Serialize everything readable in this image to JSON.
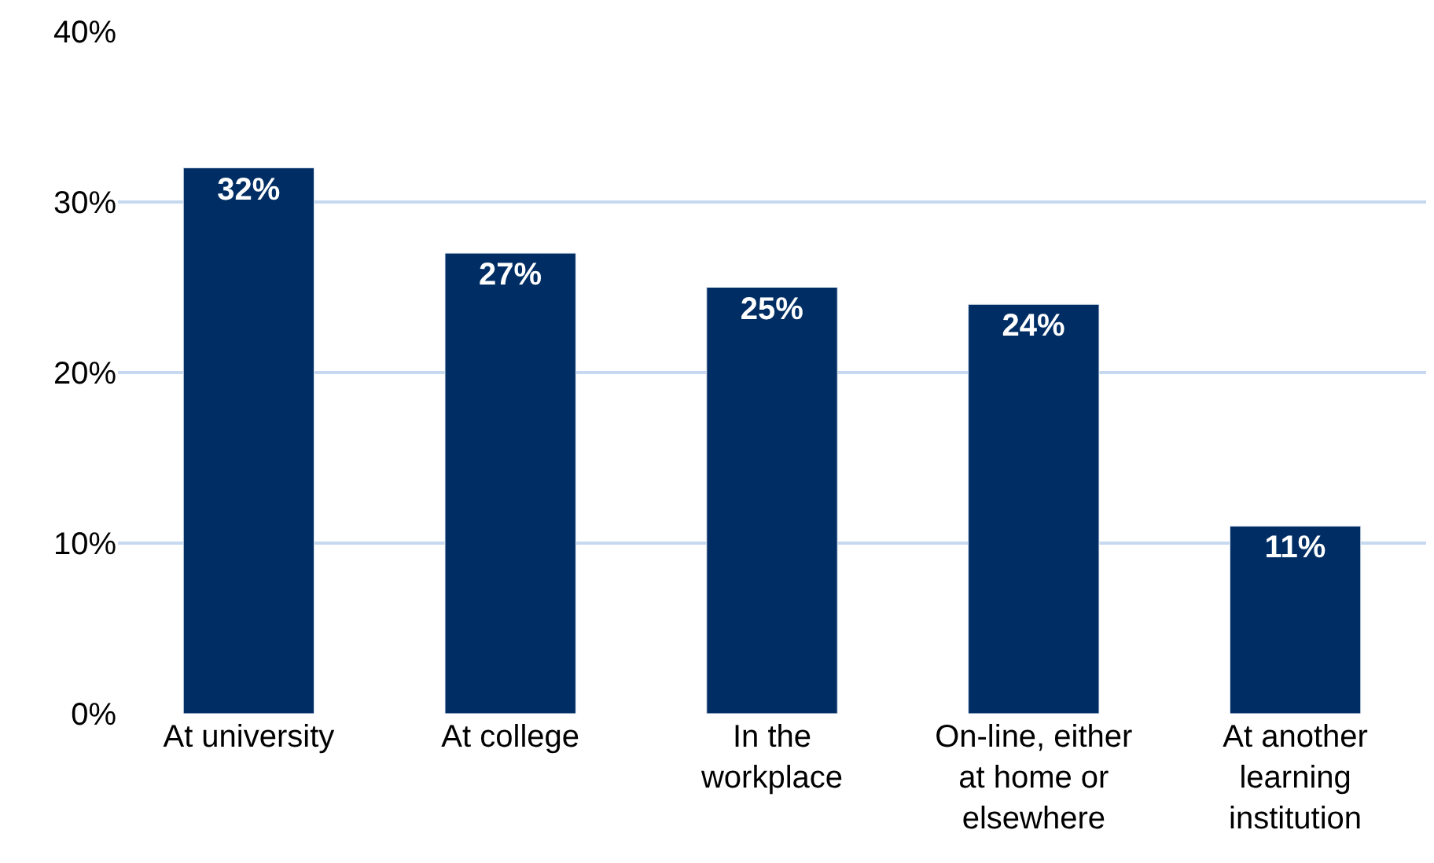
{
  "chart_data": {
    "type": "bar",
    "categories": [
      "At university",
      "At college",
      "In the workplace",
      "On-line, either at home or elsewhere",
      "At another learning institution"
    ],
    "values": [
      32,
      27,
      25,
      24,
      11
    ],
    "value_labels": [
      "32%",
      "27%",
      "25%",
      "24%",
      "11%"
    ],
    "color": "#002e64",
    "ylim": [
      0,
      40
    ],
    "yticks": [
      {
        "value": 0,
        "label": "0%"
      },
      {
        "value": 10,
        "label": "10%"
      },
      {
        "value": 20,
        "label": "20%"
      },
      {
        "value": 30,
        "label": "30%"
      },
      {
        "value": 40,
        "label": "40%"
      }
    ],
    "grid": "y",
    "legend": false
  }
}
